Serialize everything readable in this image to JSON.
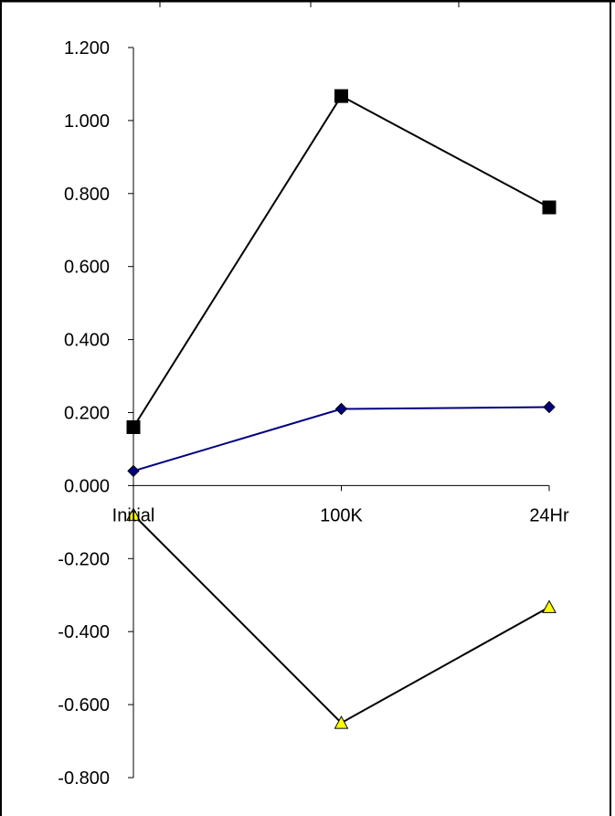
{
  "chart_data": {
    "type": "line",
    "categories": [
      "Initial",
      "100K",
      "24Hr"
    ],
    "series": [
      {
        "marker": "square",
        "color": "#000000",
        "line_color": "#000000",
        "values": [
          0.16,
          1.067,
          0.762
        ]
      },
      {
        "marker": "diamond",
        "color": "#000080",
        "line_color": "#000080",
        "values": [
          0.04,
          0.21,
          0.215
        ]
      },
      {
        "marker": "triangle",
        "color": "#ffff00",
        "line_color": "#000000",
        "values": [
          -0.08,
          -0.65,
          -0.333
        ]
      }
    ],
    "ylim": [
      -0.8,
      1.2
    ],
    "yticks": [
      "1.200",
      "1.000",
      "0.800",
      "0.600",
      "0.400",
      "0.200",
      "0.000",
      "-0.200",
      "-0.400",
      "-0.600",
      "-0.800"
    ],
    "grid": false,
    "legend": false
  }
}
